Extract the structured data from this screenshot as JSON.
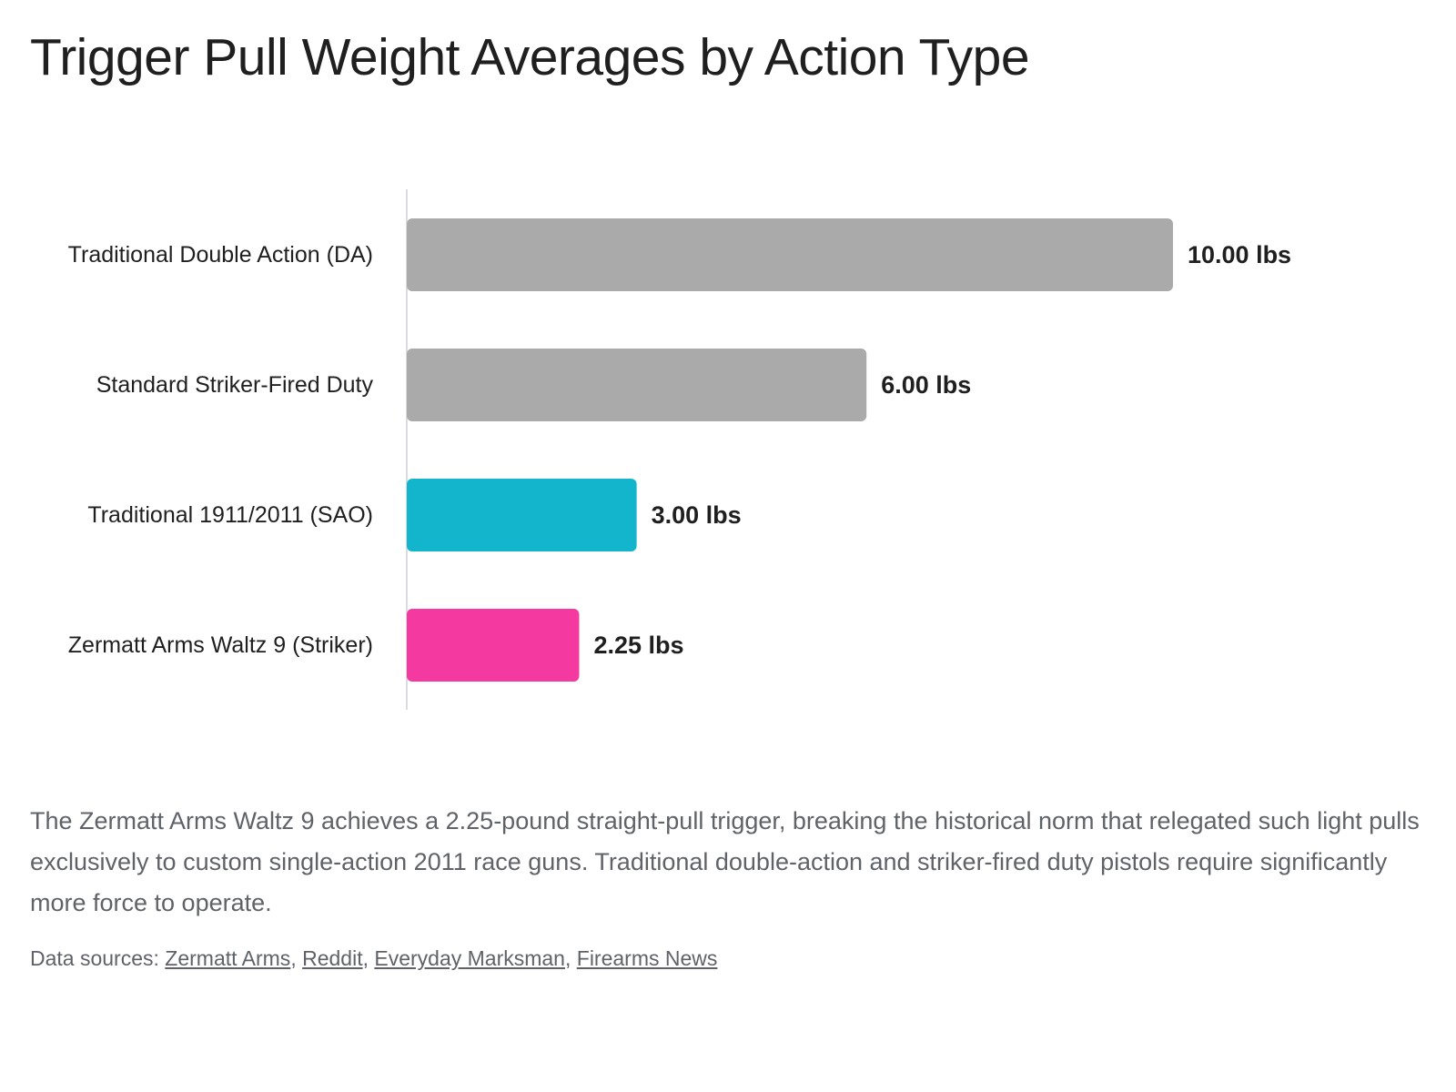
{
  "chart_data": {
    "type": "bar",
    "orientation": "horizontal",
    "title": "Trigger Pull Weight Averages by Action Type",
    "categories": [
      "Traditional Double Action (DA)",
      "Standard Striker-Fired Duty",
      "Traditional 1911/2011 (SAO)",
      "Zermatt Arms Waltz 9 (Striker)"
    ],
    "values": [
      10.0,
      6.0,
      3.0,
      2.25
    ],
    "value_labels": [
      "10.00 lbs",
      "6.00 lbs",
      "3.00 lbs",
      "2.25 lbs"
    ],
    "bar_colors": [
      "#aaaaaa",
      "#aaaaaa",
      "#12b5cb",
      "#f439a0"
    ],
    "xlim": [
      0,
      10
    ],
    "grid": false,
    "legend": "none"
  },
  "description": "The Zermatt Arms Waltz 9 achieves a 2.25-pound straight-pull trigger, breaking the historical norm that relegated such light pulls exclusively to custom single-action 2011 race guns. Traditional double-action and striker-fired duty pistols require significantly more force to operate.",
  "sources": {
    "prefix": "Data sources: ",
    "links": [
      "Zermatt Arms",
      "Reddit",
      "Everyday Marksman",
      "Firearms News"
    ]
  }
}
